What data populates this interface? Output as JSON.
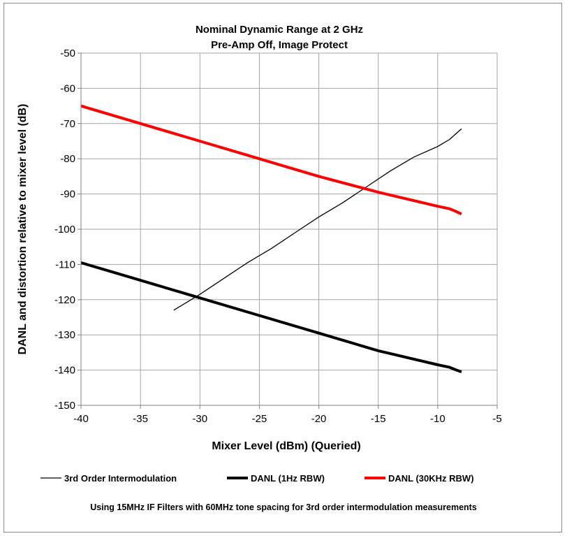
{
  "chart_data": {
    "type": "line",
    "title": "Nominal Dynamic Range at 2 GHz",
    "subtitle": "Pre-Amp Off, Image Protect",
    "xlabel": "Mixer Level (dBm) (Queried)",
    "ylabel": "DANL and distortion relative to mixer level (dB)",
    "xlim": [
      -40,
      -5
    ],
    "ylim": [
      -150,
      -50
    ],
    "xticks": [
      -40,
      -35,
      -30,
      -25,
      -20,
      -15,
      -10,
      -5
    ],
    "yticks": [
      -50,
      -60,
      -70,
      -80,
      -90,
      -100,
      -110,
      -120,
      -130,
      -140,
      -150
    ],
    "grid": true,
    "legend_position": "bottom",
    "series": [
      {
        "name": "3rd Order Intermodulation",
        "color": "#000000",
        "style": "thin",
        "x": [
          -32.2,
          -30,
          -28,
          -26,
          -24,
          -22,
          -20,
          -18,
          -16,
          -14,
          -12,
          -10,
          -9,
          -8.5,
          -8
        ],
        "y": [
          -123,
          -118.5,
          -114,
          -109.5,
          -105.5,
          -101,
          -96.5,
          -92.5,
          -88,
          -83.5,
          -79.5,
          -76.5,
          -74.5,
          -73,
          -71.5
        ]
      },
      {
        "name": "DANL (1Hz RBW)",
        "color": "#000000",
        "style": "thick",
        "x": [
          -40,
          -35,
          -30,
          -25,
          -20,
          -15,
          -10,
          -9,
          -8.5,
          -8
        ],
        "y": [
          -109.5,
          -114.5,
          -119.5,
          -124.5,
          -129.5,
          -134.5,
          -138.5,
          -139.2,
          -139.9,
          -140.5
        ]
      },
      {
        "name": "DANL (30KHz RBW)",
        "color": "#ff0000",
        "style": "thick",
        "x": [
          -40,
          -35,
          -30,
          -25,
          -20,
          -15,
          -10,
          -9,
          -8.5,
          -8
        ],
        "y": [
          -65,
          -70,
          -75,
          -80,
          -85,
          -89.5,
          -93.5,
          -94.2,
          -94.9,
          -95.7
        ]
      }
    ]
  },
  "footnote": "Using 15MHz IF Filters with 60MHz tone spacing for 3rd order intermodulation measurements"
}
